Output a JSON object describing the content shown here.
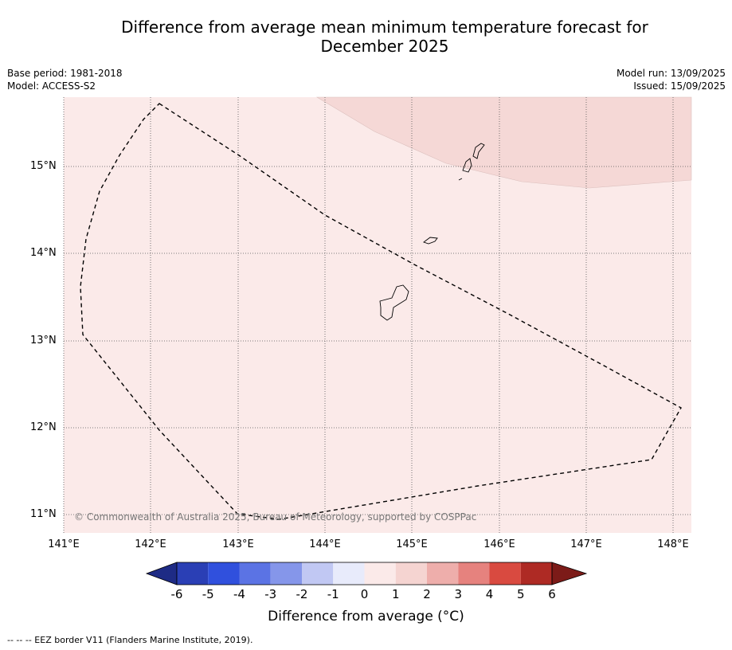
{
  "title_line1": "Difference from average mean minimum temperature forecast for",
  "title_line2": "December 2025",
  "meta_left": {
    "base_period": "Base period: 1981-2018",
    "model": "Model: ACCESS-S2"
  },
  "meta_right": {
    "model_run": "Model run: 13/09/2025",
    "issued": "Issued: 15/09/2025"
  },
  "lat_labels": [
    "15°N",
    "14°N",
    "13°N",
    "12°N",
    "11°N"
  ],
  "lon_labels": [
    "141°E",
    "142°E",
    "143°E",
    "144°E",
    "145°E",
    "146°E",
    "147°E",
    "148°E"
  ],
  "copyright": "© Commonwealth of Australia 2025, Bureau of Meteorology, supported by COSPPac",
  "colorbar": {
    "title": "Difference from average (°C)",
    "ticks": [
      "-6",
      "-5",
      "-4",
      "-3",
      "-2",
      "-1",
      "0",
      "1",
      "2",
      "3",
      "4",
      "5",
      "6"
    ],
    "colors": [
      "#1e2b85",
      "#2a3fb5",
      "#3050dd",
      "#5b73e4",
      "#8596ea",
      "#c1c8f3",
      "#e8ebfb",
      "#fbeae9",
      "#f5d4d1",
      "#eeaeab",
      "#e6827e",
      "#d94a40",
      "#ae2a24",
      "#7c1b18"
    ]
  },
  "legend_footnote": "--  --  -- EEZ border V11 (Flanders Marine Institute, 2019).",
  "colors": {
    "background_anomaly": "#fbeae9",
    "warm_anomaly": "#f5d8d6",
    "land_outline": "#000000"
  }
}
